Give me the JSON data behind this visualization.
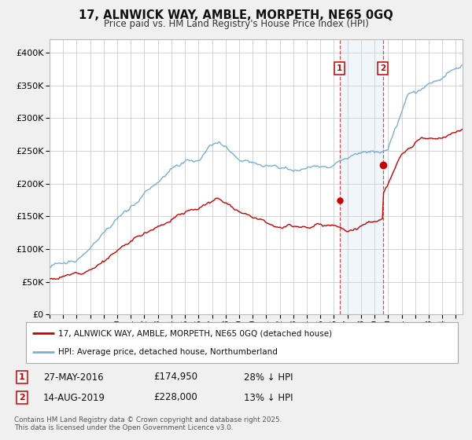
{
  "title": "17, ALNWICK WAY, AMBLE, MORPETH, NE65 0GQ",
  "subtitle": "Price paid vs. HM Land Registry's House Price Index (HPI)",
  "ytick_values": [
    0,
    50000,
    100000,
    150000,
    200000,
    250000,
    300000,
    350000,
    400000
  ],
  "ylim": [
    0,
    420000
  ],
  "xlim_start": 1995.0,
  "xlim_end": 2025.5,
  "hpi_color": "#7aafd4",
  "price_color": "#cc0000",
  "marker1_date": 2016.41,
  "marker1_price": 174950,
  "marker1_label": "27-MAY-2016",
  "marker1_text": "£174,950",
  "marker1_note": "28% ↓ HPI",
  "marker2_date": 2019.62,
  "marker2_price": 228000,
  "marker2_label": "14-AUG-2019",
  "marker2_text": "£228,000",
  "marker2_note": "13% ↓ HPI",
  "legend_red": "17, ALNWICK WAY, AMBLE, MORPETH, NE65 0GQ (detached house)",
  "legend_blue": "HPI: Average price, detached house, Northumberland",
  "footer": "Contains HM Land Registry data © Crown copyright and database right 2025.\nThis data is licensed under the Open Government Licence v3.0.",
  "background_color": "#f0f0f0",
  "plot_bg": "#ffffff",
  "grid_color": "#cccccc",
  "span_color": "#c8dcee"
}
